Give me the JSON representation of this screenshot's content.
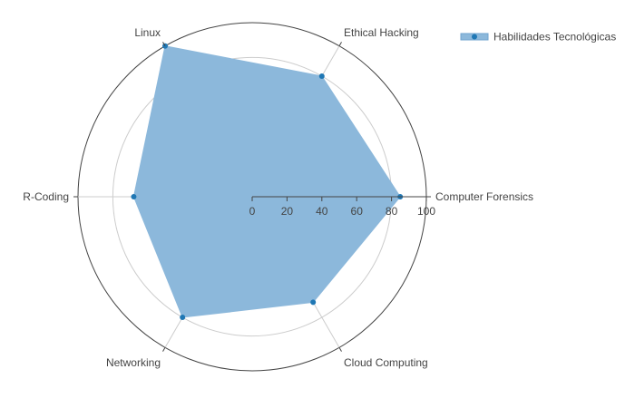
{
  "chart_data": {
    "type": "radar",
    "title": "",
    "categories": [
      "Computer Forensics",
      "Ethical Hacking",
      "Linux",
      "R-Coding",
      "Networking",
      "Cloud Computing"
    ],
    "series": [
      {
        "name": "Habilidades Tecnológicas",
        "values": [
          85,
          80,
          100,
          68,
          80,
          70
        ],
        "color": "#1f77b4",
        "fill_color": "#8cb8db"
      }
    ],
    "radial_range": [
      0,
      100
    ],
    "radial_ticks": [
      0,
      20,
      40,
      60,
      80,
      100
    ],
    "grid": true,
    "legend": "top-right"
  }
}
